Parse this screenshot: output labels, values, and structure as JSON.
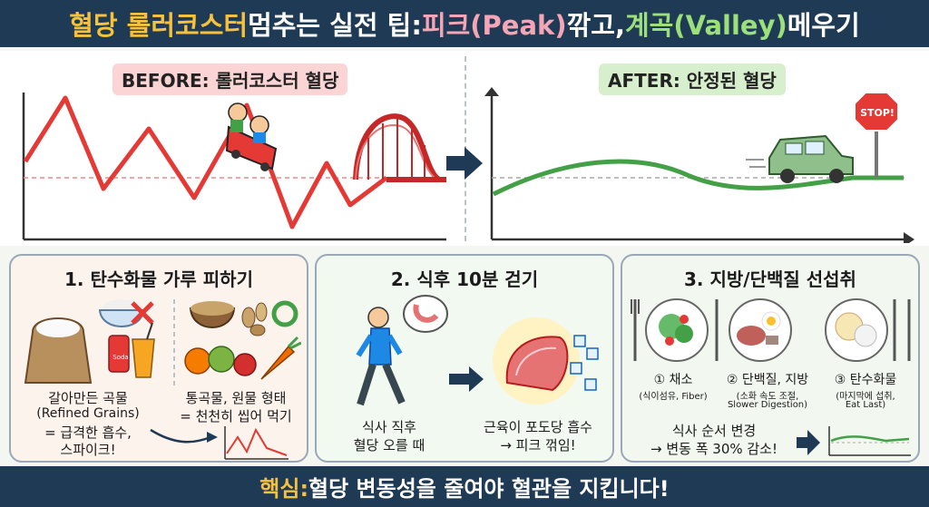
{
  "header": {
    "part1": "혈당 롤러코스터",
    "part2": " 멈추는 실전 팁: ",
    "part3": "피크(Peak)",
    "part4": " 깎고, ",
    "part5": "계곡(Valley)",
    "part6": " 메우기"
  },
  "before_panel": {
    "label": "BEFORE: 롤러코스터 혈당",
    "colors": {
      "line": "#e53935",
      "track": "#c62828"
    },
    "icons": [
      "roller-coaster-icon",
      "riders-icon"
    ]
  },
  "after_panel": {
    "label": "AFTER: 안정된 혈당",
    "stop_sign": "STOP!",
    "colors": {
      "line": "#43a047",
      "car": "#8fbf8a"
    },
    "icons": [
      "car-icon",
      "stop-sign-icon",
      "arrow-right-icon"
    ]
  },
  "tip1": {
    "title": "1. 탄수화물 가루 피하기",
    "bad_label_line1": "갈아만든 곡물",
    "bad_label_line2": "(Refined Grains)",
    "bad_label_line3": "= 급격한 흡수,",
    "bad_label_line4": "스파이크!",
    "good_label_line1": "통곡물, 원물 형태",
    "good_label_line2": "= 천천히 씹어 먹기",
    "soda_text": "Soda",
    "icons": [
      "flour-sack-icon",
      "cross-icon",
      "grain-bowl-icon",
      "circle-icon",
      "vegetables-icon",
      "spike-chart-icon"
    ]
  },
  "tip2": {
    "title": "2. 식후 10분 걷기",
    "walk_label_line1": "식사 직후",
    "walk_label_line2": "혈당 오를 때",
    "muscle_label_line1": "근육이 포도당 흡수",
    "muscle_label_line2": "→ 피크 꺾임!",
    "icons": [
      "walking-person-icon",
      "stomach-icon",
      "muscle-icon",
      "glucose-cubes-icon"
    ]
  },
  "tip3": {
    "title": "3. 지방/단백질 선섭취",
    "plate1_label": "① 채소",
    "plate1_sub": "(식이섬유, Fiber)",
    "plate2_label": "② 단백질, 지방",
    "plate2_sub1": "(소화 속도 조절,",
    "plate2_sub2": "Slower Digestion)",
    "plate3_label": "③ 탄수화물",
    "plate3_sub1": "(마지막에 섭취,",
    "plate3_sub2": "Eat Last)",
    "order_line1": "식사 순서 변경",
    "order_line2": "→ 변동 폭 30% 감소!",
    "icons": [
      "salad-plate-icon",
      "protein-plate-icon",
      "rice-plate-icon",
      "fork-icon",
      "knife-icon",
      "flat-chart-icon"
    ]
  },
  "footer": {
    "key": "핵심:",
    "message": " 혈당 변동성을 줄여야 혈관을 지킵니다!"
  }
}
